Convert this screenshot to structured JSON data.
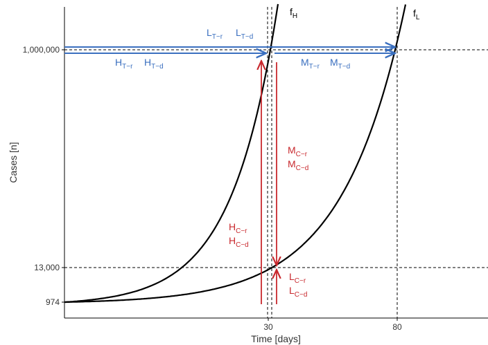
{
  "axes": {
    "x_label": "Time [days]",
    "y_label": "Cases [n]",
    "x_ticks": [
      "30",
      "80"
    ],
    "y_ticks": [
      "1,000,000",
      "13,000",
      "974"
    ]
  },
  "curves": [
    {
      "base": "f",
      "sub": "H"
    },
    {
      "base": "f",
      "sub": "L"
    }
  ],
  "annotations": {
    "top_L": [
      {
        "base": "L",
        "sub": "T−r"
      },
      {
        "base": "L",
        "sub": "T−d"
      }
    ],
    "top_H": [
      {
        "base": "H",
        "sub": "T−r"
      },
      {
        "base": "H",
        "sub": "T−d"
      }
    ],
    "top_M": [
      {
        "base": "M",
        "sub": "T−r"
      },
      {
        "base": "M",
        "sub": "T−d"
      }
    ],
    "cases_M": [
      {
        "base": "M",
        "sub": "C−r"
      },
      {
        "base": "M",
        "sub": "C−d"
      }
    ],
    "cases_H": [
      {
        "base": "H",
        "sub": "C−r"
      },
      {
        "base": "H",
        "sub": "C−d"
      }
    ],
    "cases_L": [
      {
        "base": "L",
        "sub": "C−r"
      },
      {
        "base": "L",
        "sub": "C−d"
      }
    ]
  }
}
